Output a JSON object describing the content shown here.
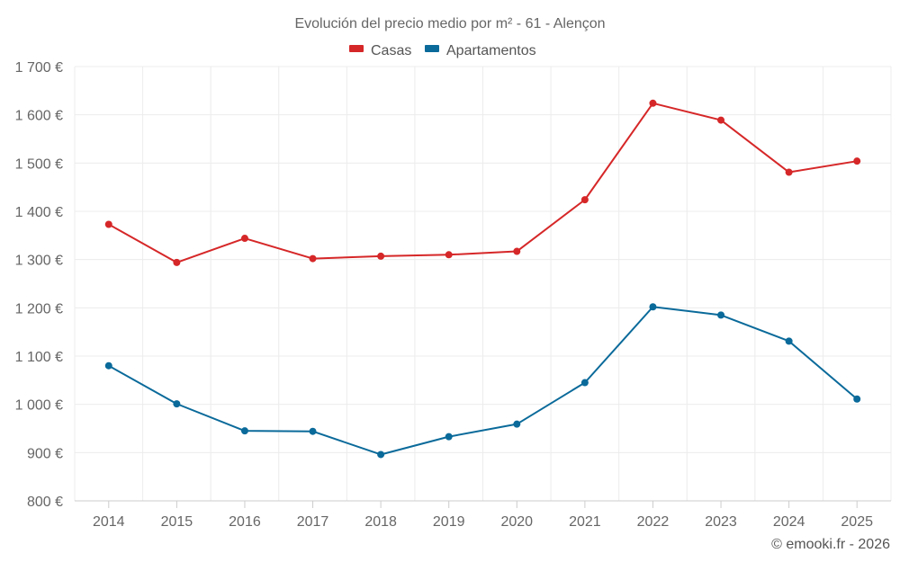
{
  "chart_data": {
    "type": "line",
    "title": "Evolución del precio medio por m² - 61 - Alençon",
    "categories": [
      "2014",
      "2015",
      "2016",
      "2017",
      "2018",
      "2019",
      "2020",
      "2021",
      "2022",
      "2023",
      "2024",
      "2025"
    ],
    "series": [
      {
        "name": "Casas",
        "color": "#d62728",
        "values": [
          1373,
          1294,
          1344,
          1302,
          1307,
          1310,
          1317,
          1424,
          1624,
          1589,
          1481,
          1504
        ]
      },
      {
        "name": "Apartamentos",
        "color": "#0a6a9a",
        "values": [
          1080,
          1001,
          945,
          944,
          896,
          933,
          959,
          1045,
          1202,
          1185,
          1131,
          1011
        ]
      }
    ],
    "ylim": [
      800,
      1700
    ],
    "yticks": [
      800,
      900,
      1000,
      1100,
      1200,
      1300,
      1400,
      1500,
      1600,
      1700
    ],
    "ytick_labels": [
      "800 €",
      "900 €",
      "1 000 €",
      "1 100 €",
      "1 200 €",
      "1 300 €",
      "1 400 €",
      "1 500 €",
      "1 600 €",
      "1 700 €"
    ],
    "grid": true,
    "legend_position": "top-center"
  },
  "credit": "© emooki.fr - 2026"
}
